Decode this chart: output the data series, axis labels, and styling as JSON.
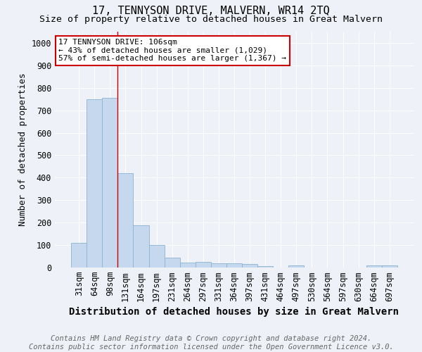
{
  "title": "17, TENNYSON DRIVE, MALVERN, WR14 2TQ",
  "subtitle": "Size of property relative to detached houses in Great Malvern",
  "xlabel": "Distribution of detached houses by size in Great Malvern",
  "ylabel": "Number of detached properties",
  "categories": [
    "31sqm",
    "64sqm",
    "98sqm",
    "131sqm",
    "164sqm",
    "197sqm",
    "231sqm",
    "264sqm",
    "297sqm",
    "331sqm",
    "364sqm",
    "397sqm",
    "431sqm",
    "464sqm",
    "497sqm",
    "530sqm",
    "564sqm",
    "597sqm",
    "630sqm",
    "664sqm",
    "697sqm"
  ],
  "values": [
    110,
    750,
    755,
    420,
    188,
    100,
    45,
    22,
    25,
    18,
    18,
    15,
    5,
    0,
    8,
    0,
    0,
    0,
    0,
    8,
    8
  ],
  "bar_color": "#c5d8ed",
  "bar_edge_color": "#8ab4d4",
  "vline_x": 2.5,
  "vline_color": "#cc0000",
  "annotation_line1": "17 TENNYSON DRIVE: 106sqm",
  "annotation_line2": "← 43% of detached houses are smaller (1,029)",
  "annotation_line3": "57% of semi-detached houses are larger (1,367) →",
  "annotation_box_color": "#ffffff",
  "annotation_box_edge": "#cc0000",
  "ylim": [
    0,
    1050
  ],
  "yticks": [
    0,
    100,
    200,
    300,
    400,
    500,
    600,
    700,
    800,
    900,
    1000
  ],
  "footer": "Contains HM Land Registry data © Crown copyright and database right 2024.\nContains public sector information licensed under the Open Government Licence v3.0.",
  "background_color": "#eef2f8",
  "plot_bg_color": "#eef2f8",
  "grid_color": "#ffffff",
  "title_fontsize": 11,
  "subtitle_fontsize": 9.5,
  "xlabel_fontsize": 10,
  "ylabel_fontsize": 9,
  "footer_fontsize": 7.5,
  "tick_fontsize": 8.5
}
